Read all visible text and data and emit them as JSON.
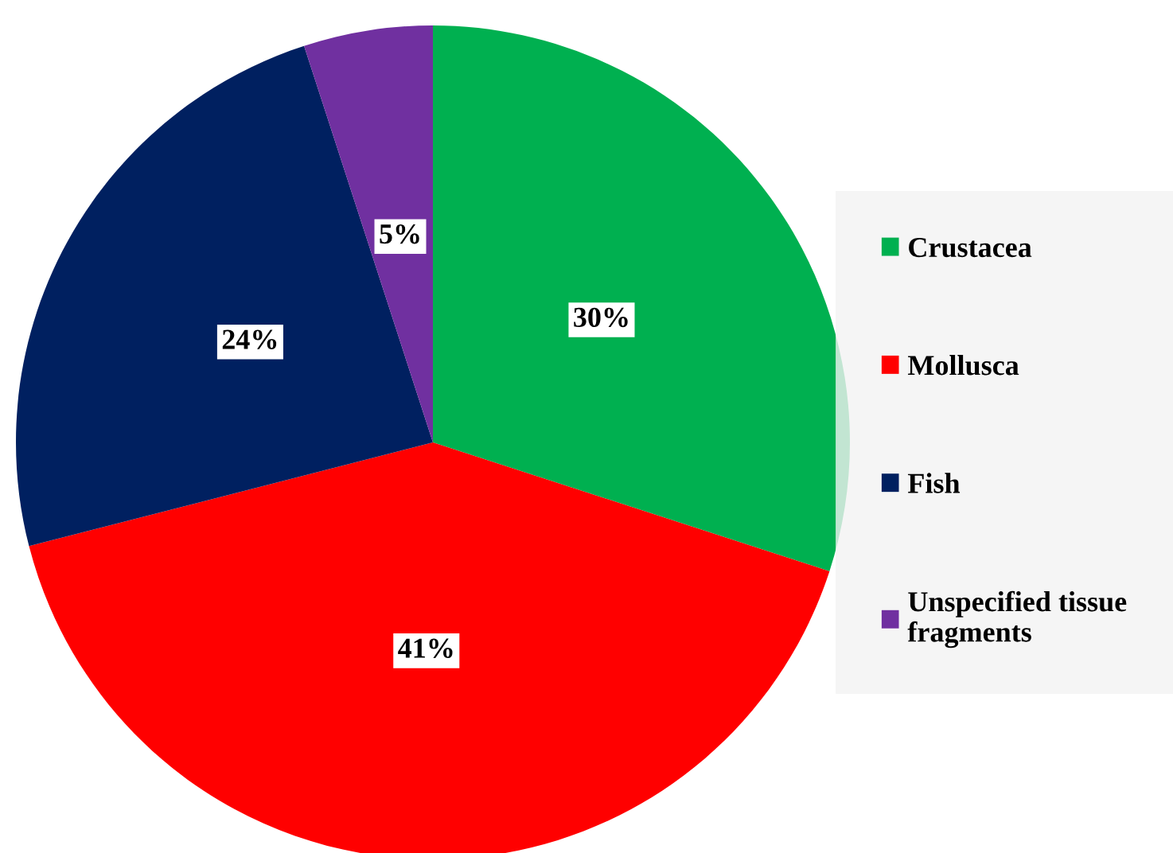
{
  "chart_data": {
    "type": "pie",
    "categories": [
      "Crustacea",
      "Mollusca",
      "Fish",
      "Unspecified tissue fragments"
    ],
    "values": [
      30,
      41,
      24,
      5
    ],
    "colors": [
      "#00b050",
      "#ff0000",
      "#002060",
      "#7030a0"
    ],
    "value_labels": [
      "30%",
      "41%",
      "24%",
      "5%"
    ],
    "legend": "right"
  }
}
